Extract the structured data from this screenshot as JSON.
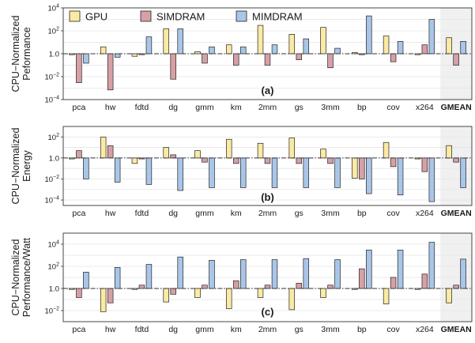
{
  "colors": {
    "GPU": "#fbeaa3",
    "SIMDRAM": "#d6a0a6",
    "MIMDRAM": "#a9c6e8",
    "gmean_bg": "#f0f0f0",
    "grid": "#e5e5e5"
  },
  "legend": [
    "GPU",
    "SIMDRAM",
    "MIMDRAM"
  ],
  "chart_data": [
    {
      "type": "bar",
      "panel_label": "(a)",
      "ylabel": [
        "CPU−Normalized",
        "Peformance"
      ],
      "yscale": "log",
      "ylim": [
        0.0001,
        10000
      ],
      "yticks": [
        {
          "value": 0.0001,
          "base": "10",
          "exp": "−4"
        },
        {
          "value": 0.01,
          "base": "10",
          "exp": "−2"
        },
        {
          "value": 1,
          "base": "1.0",
          "exp": ""
        },
        {
          "value": 100,
          "base": "10",
          "exp": "2"
        },
        {
          "value": 10000,
          "base": "10",
          "exp": "4"
        }
      ],
      "baseline": 1,
      "categories": [
        "pca",
        "hw",
        "fdtd",
        "dg",
        "gmm",
        "km",
        "2mm",
        "gs",
        "3mm",
        "bp",
        "cov",
        "x264",
        "GMEAN"
      ],
      "series": [
        {
          "name": "GPU",
          "values": [
            1,
            4,
            0.6,
            150,
            1.5,
            6,
            300,
            50,
            200,
            1.3,
            35,
            1,
            25
          ]
        },
        {
          "name": "SIMDRAM",
          "values": [
            0.003,
            0.0007,
            1,
            0.006,
            0.15,
            0.1,
            0.1,
            0.3,
            0.06,
            1,
            0.2,
            6,
            0.1
          ]
        },
        {
          "name": "MIMDRAM",
          "values": [
            0.15,
            0.5,
            30,
            150,
            4,
            4,
            6,
            20,
            3,
            2000,
            12,
            1000,
            12
          ]
        }
      ],
      "gmean_highlight": "GMEAN"
    },
    {
      "type": "bar",
      "panel_label": "(b)",
      "ylabel": [
        "CPU−Normalized",
        "Energy"
      ],
      "yscale": "log",
      "ylim": [
        3e-05,
        1000
      ],
      "yticks": [
        {
          "value": 0.0001,
          "base": "10",
          "exp": "−4"
        },
        {
          "value": 0.01,
          "base": "10",
          "exp": "−2"
        },
        {
          "value": 1,
          "base": "1.0",
          "exp": ""
        },
        {
          "value": 100,
          "base": "10",
          "exp": "2"
        }
      ],
      "baseline": 1,
      "categories": [
        "pca",
        "hw",
        "fdtd",
        "dg",
        "gmm",
        "km",
        "2mm",
        "gs",
        "3mm",
        "bp",
        "cov",
        "x264",
        "GMEAN"
      ],
      "series": [
        {
          "name": "GPU",
          "values": [
            1,
            100,
            0.3,
            10,
            5,
            60,
            25,
            80,
            7,
            0.012,
            30,
            1,
            15
          ]
        },
        {
          "name": "SIMDRAM",
          "values": [
            5,
            15,
            1,
            2,
            0.4,
            0.3,
            0.3,
            0.3,
            0.3,
            0.01,
            0.15,
            0.05,
            0.4
          ]
        },
        {
          "name": "MIMDRAM",
          "values": [
            0.01,
            0.005,
            0.003,
            0.0008,
            0.0015,
            0.0015,
            0.0015,
            0.0015,
            0.0015,
            0.0004,
            0.0003,
            7e-05,
            0.0015
          ]
        }
      ],
      "gmean_highlight": "GMEAN"
    },
    {
      "type": "bar",
      "panel_label": "(c)",
      "ylabel": [
        "CPU−Normalized",
        "Performance/Watt"
      ],
      "yscale": "log",
      "ylim": [
        0.001,
        100000
      ],
      "yticks": [
        {
          "value": 0.01,
          "base": "10",
          "exp": "−2"
        },
        {
          "value": 1,
          "base": "1.0",
          "exp": ""
        },
        {
          "value": 100,
          "base": "10",
          "exp": "2"
        },
        {
          "value": 10000,
          "base": "10",
          "exp": "4"
        }
      ],
      "baseline": 1,
      "categories": [
        "pca",
        "hw",
        "fdtd",
        "dg",
        "gmm",
        "km",
        "2mm",
        "gs",
        "3mm",
        "bp",
        "cov",
        "x264",
        "GMEAN"
      ],
      "series": [
        {
          "name": "GPU",
          "values": [
            1,
            0.008,
            1,
            0.06,
            0.15,
            0.015,
            0.15,
            0.012,
            0.15,
            1,
            0.04,
            1,
            0.05
          ]
        },
        {
          "name": "SIMDRAM",
          "values": [
            0.15,
            0.05,
            2,
            0.3,
            2,
            5,
            2,
            3,
            2,
            60,
            10,
            20,
            2
          ]
        },
        {
          "name": "MIMDRAM",
          "values": [
            30,
            80,
            150,
            700,
            350,
            400,
            400,
            500,
            400,
            3000,
            3000,
            15000,
            450
          ]
        }
      ],
      "gmean_highlight": "GMEAN"
    }
  ]
}
